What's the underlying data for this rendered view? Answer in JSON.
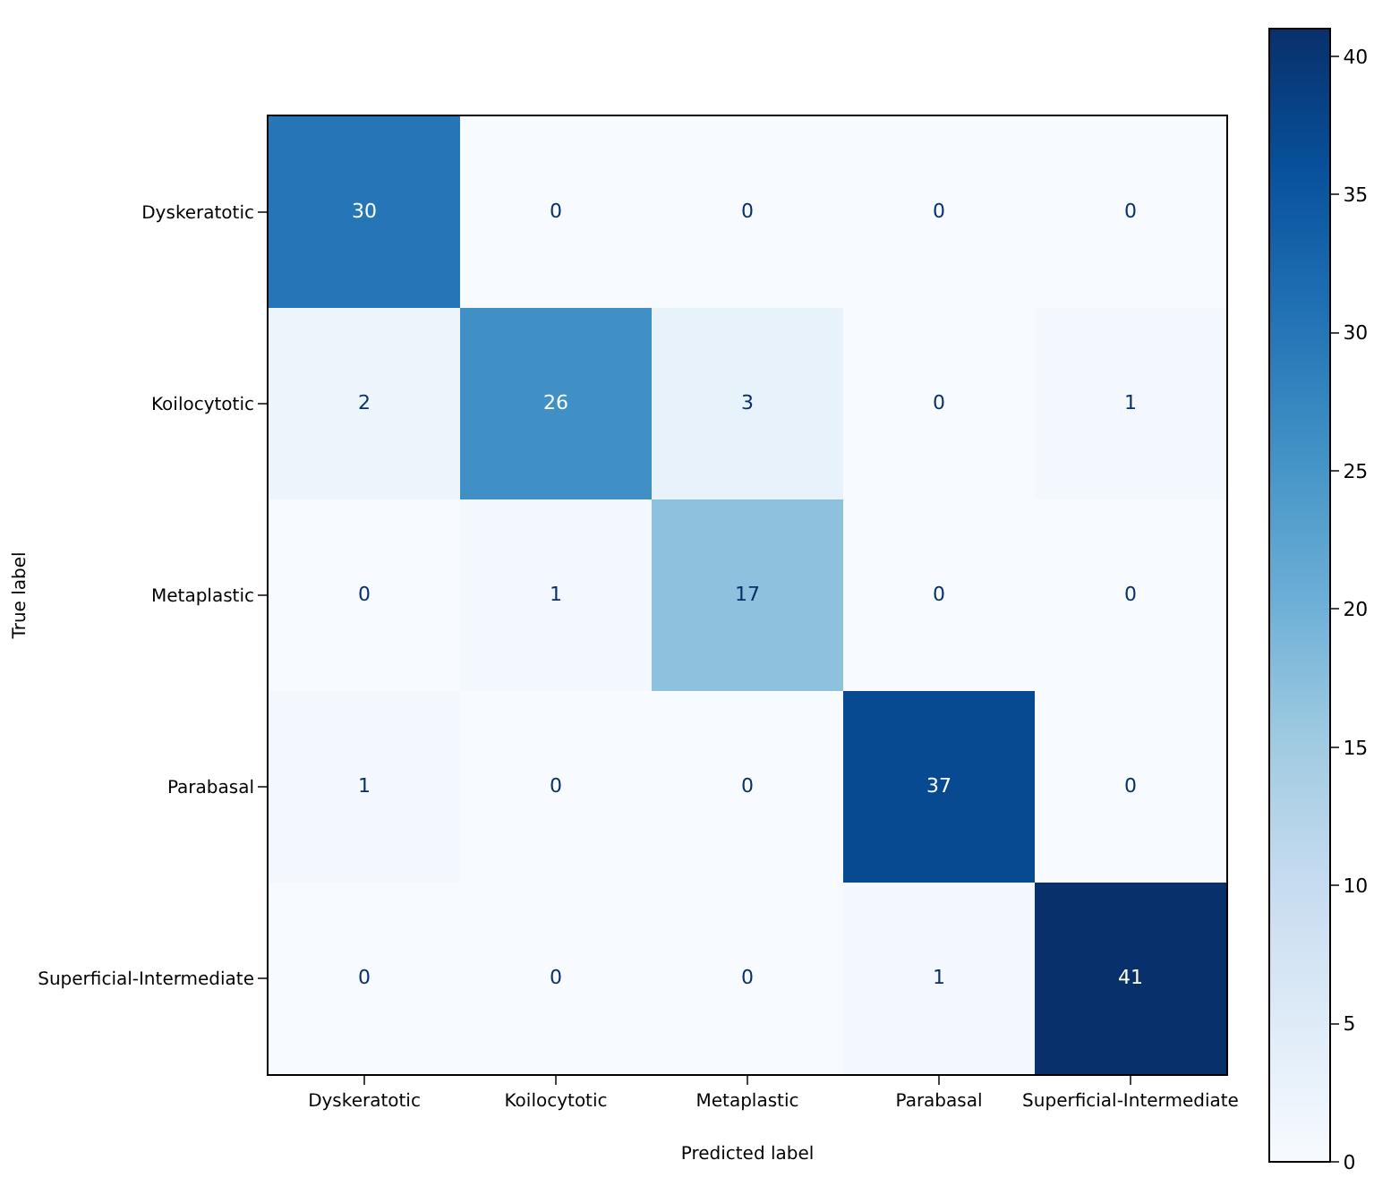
{
  "chart_data": {
    "type": "heatmap",
    "xlabel": "Predicted label",
    "ylabel": "True label",
    "categories": [
      "Dyskeratotic",
      "Koilocytotic",
      "Metaplastic",
      "Parabasal",
      "Superficial-Intermediate"
    ],
    "y_categories": [
      "Dyskeratotic",
      "Koilocytotic",
      "Metaplastic",
      "Parabasal",
      "Superficial-Intermediate"
    ],
    "cells": [
      [
        30,
        0,
        0,
        0,
        0
      ],
      [
        2,
        26,
        3,
        0,
        1
      ],
      [
        0,
        1,
        17,
        0,
        0
      ],
      [
        1,
        0,
        0,
        37,
        0
      ],
      [
        0,
        0,
        0,
        1,
        41
      ]
    ],
    "clim": [
      0,
      41
    ],
    "cticks": [
      0,
      5,
      10,
      15,
      20,
      25,
      30,
      35,
      40
    ],
    "data_labels": true
  }
}
